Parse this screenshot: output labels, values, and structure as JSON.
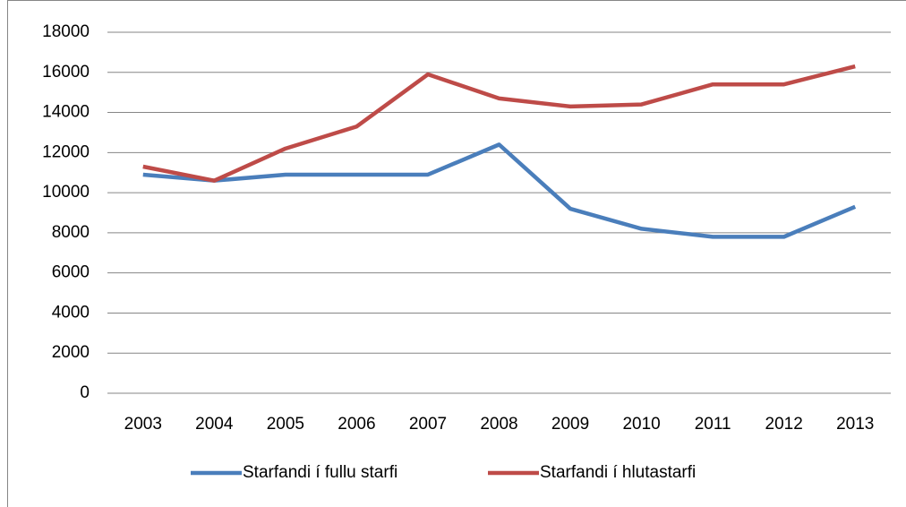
{
  "chart_data": {
    "type": "line",
    "categories": [
      "2003",
      "2004",
      "2005",
      "2006",
      "2007",
      "2008",
      "2009",
      "2010",
      "2011",
      "2012",
      "2013"
    ],
    "series": [
      {
        "name": "Starfandi í fullu starfi",
        "color": "#4a7ebb",
        "values": [
          10900,
          10600,
          10900,
          10900,
          10900,
          12400,
          9200,
          8200,
          7800,
          7800,
          9300
        ]
      },
      {
        "name": "Starfandi í hlutastarfi",
        "color": "#be4b48",
        "values": [
          11300,
          10600,
          12200,
          13300,
          15900,
          14700,
          14300,
          14400,
          15400,
          15400,
          16300
        ]
      }
    ],
    "ylim": [
      0,
      18000
    ],
    "yticks": [
      0,
      2000,
      4000,
      6000,
      8000,
      10000,
      12000,
      14000,
      16000,
      18000
    ],
    "grid": true,
    "legend": "bottom"
  }
}
